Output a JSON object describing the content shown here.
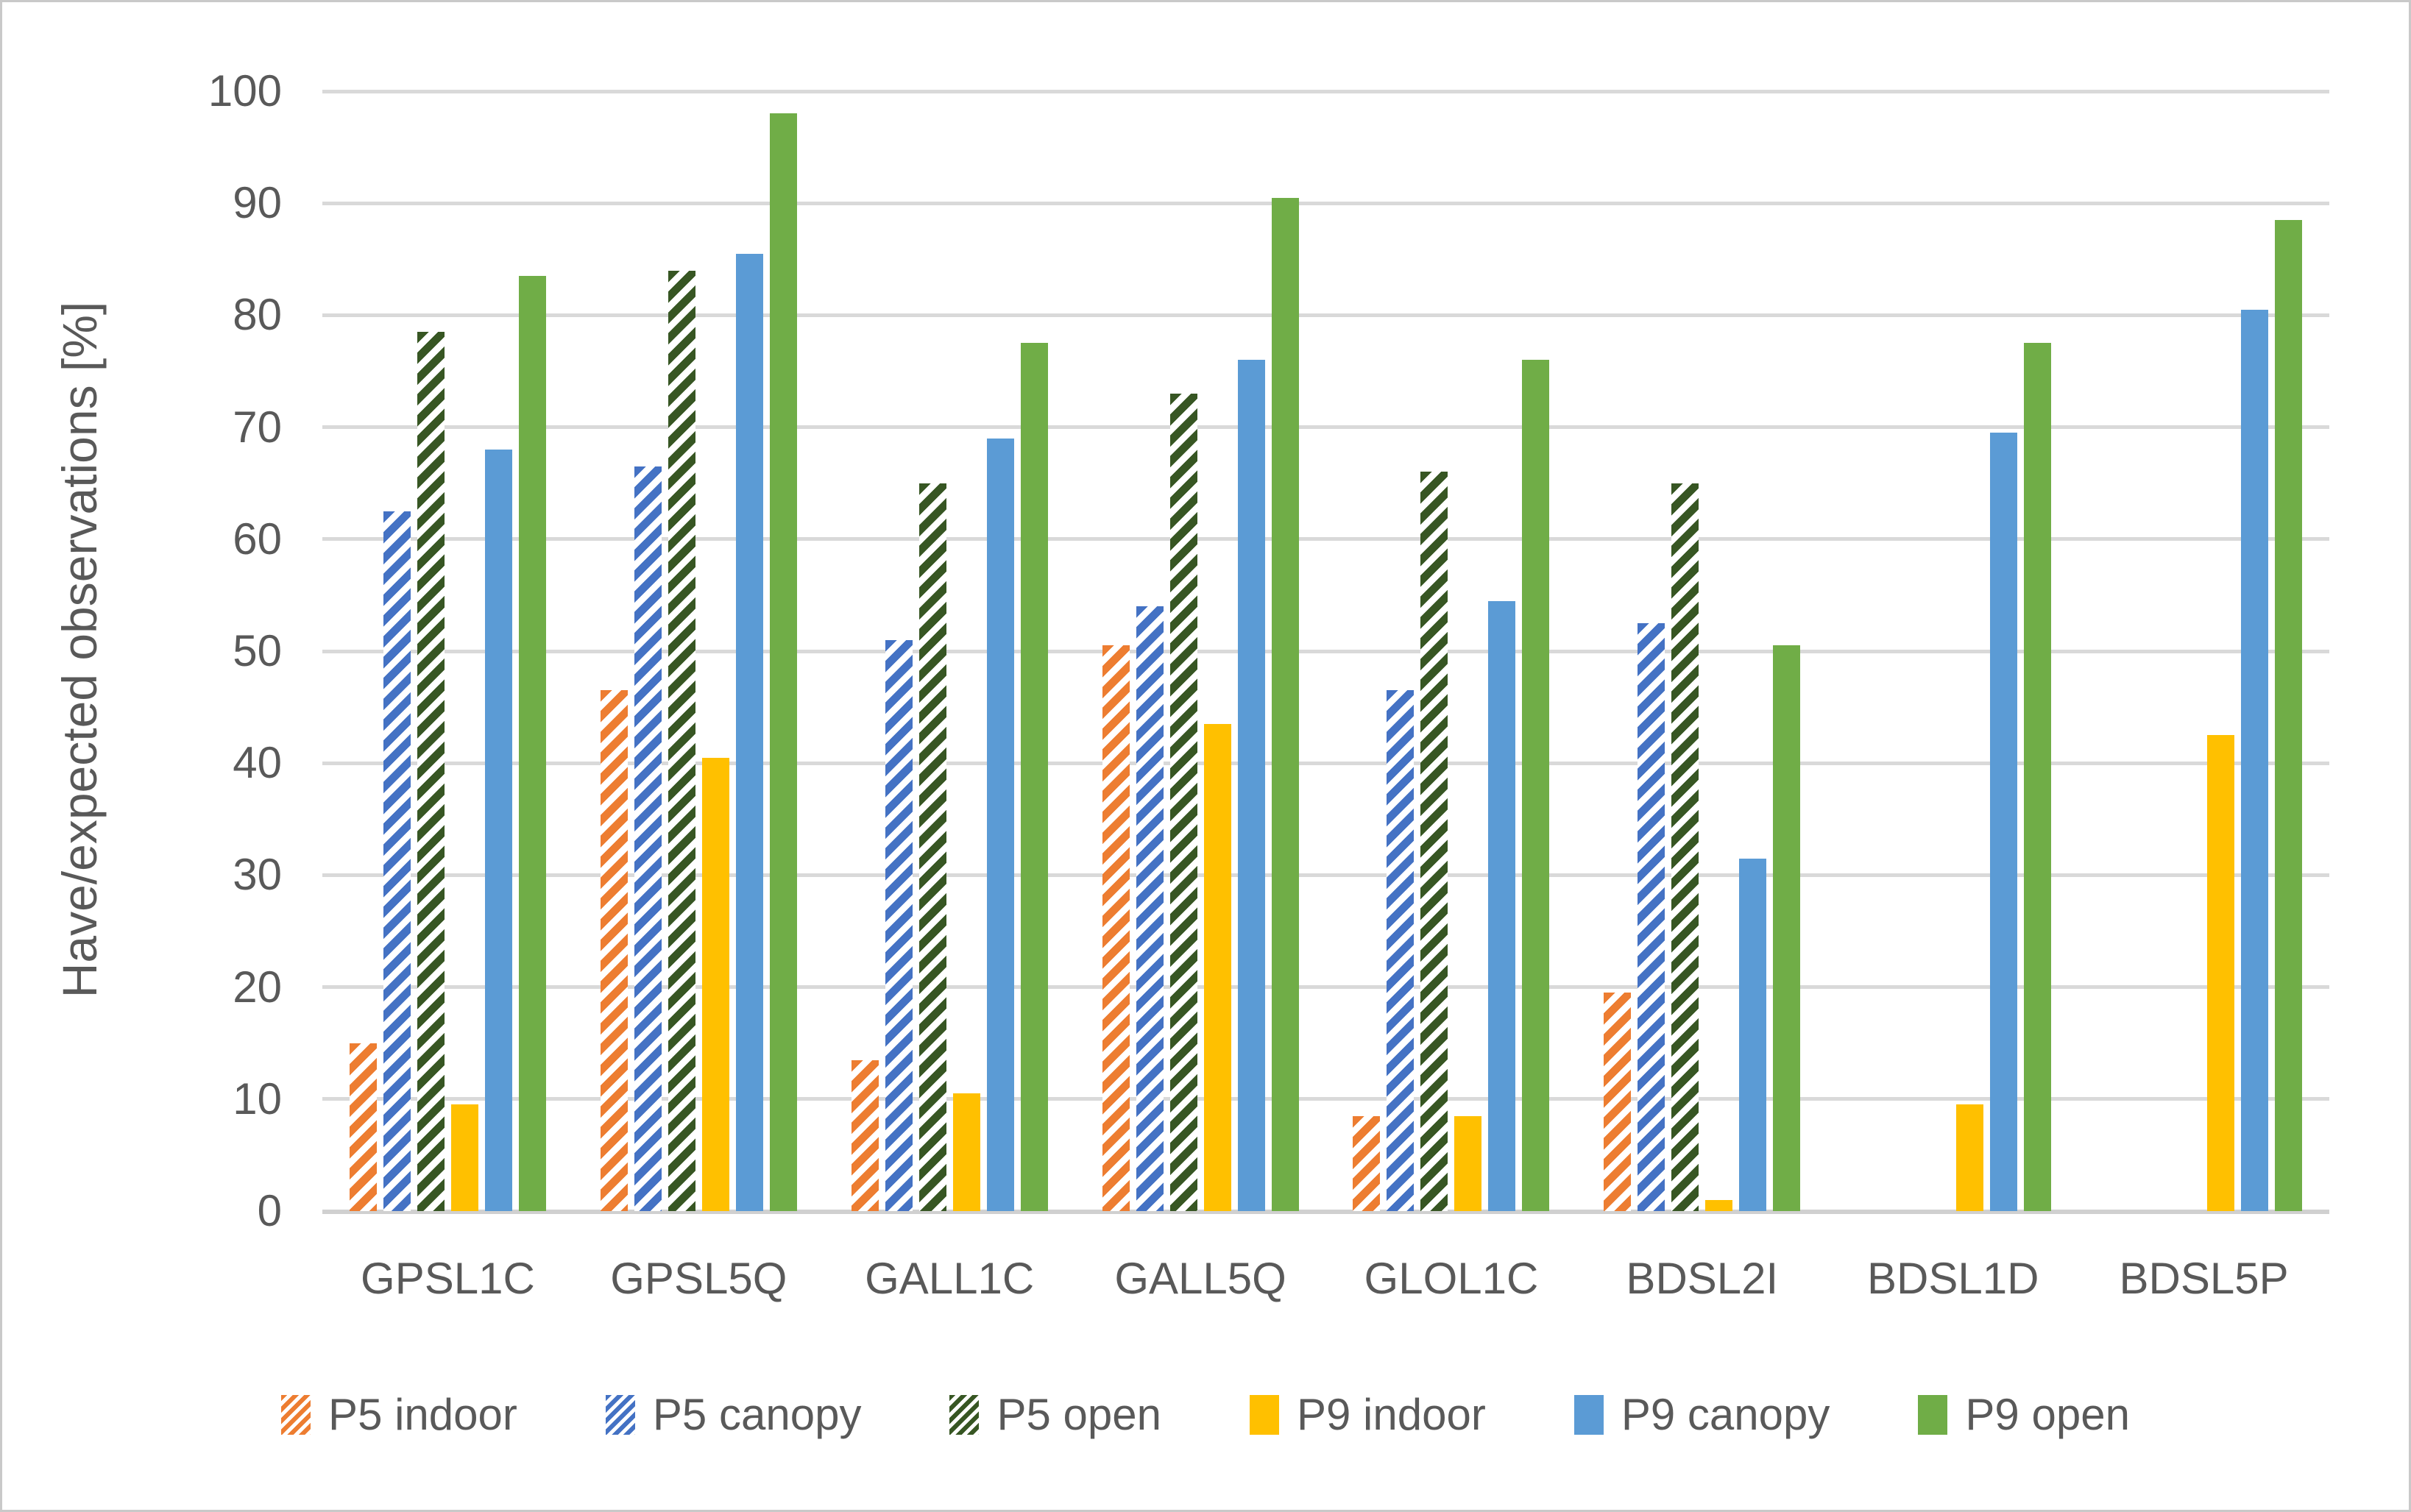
{
  "chart_data": {
    "type": "bar",
    "title": "",
    "xlabel": "",
    "ylabel": "Have/expected observations [%]",
    "ylim": [
      0,
      100
    ],
    "yticks": [
      0,
      10,
      20,
      30,
      40,
      50,
      60,
      70,
      80,
      90,
      100
    ],
    "grid": true,
    "legend_position": "bottom",
    "categories": [
      "GPSL1C",
      "GPSL5Q",
      "GALL1C",
      "GALL5Q",
      "GLOL1C",
      "BDSL2I",
      "BDSL1D",
      "BDSL5P"
    ],
    "series": [
      {
        "name": "P5 indoor",
        "color": "#ED7D31",
        "pattern": "diagonal-hatch",
        "values": [
          15,
          46.5,
          13.5,
          50.5,
          8.5,
          19.5,
          0,
          0
        ]
      },
      {
        "name": "P5 canopy",
        "color": "#4472C4",
        "pattern": "diagonal-hatch",
        "values": [
          62.5,
          66.5,
          51,
          54,
          46.5,
          52.5,
          0,
          0
        ]
      },
      {
        "name": "P5 open",
        "color": "#375623",
        "pattern": "diagonal-hatch",
        "values": [
          78.5,
          84,
          65,
          73,
          66,
          65,
          0,
          0
        ]
      },
      {
        "name": "P9 indoor",
        "color": "#FFC000",
        "pattern": "solid",
        "values": [
          9.5,
          40.5,
          10.5,
          43.5,
          8.5,
          1,
          9.5,
          42.5
        ]
      },
      {
        "name": "P9 canopy",
        "color": "#5B9BD5",
        "pattern": "solid",
        "values": [
          68,
          85.5,
          69,
          76,
          54.5,
          31.5,
          69.5,
          80.5
        ]
      },
      {
        "name": "P9 open",
        "color": "#70AD47",
        "pattern": "solid",
        "values": [
          83.5,
          98,
          77.5,
          90.5,
          76,
          50.5,
          77.5,
          88.5
        ]
      }
    ],
    "colors": {
      "gridline": "#D9D9D9",
      "axis_text": "#595959",
      "frame_border": "#C9C9C9",
      "background": "#FFFFFF"
    }
  }
}
